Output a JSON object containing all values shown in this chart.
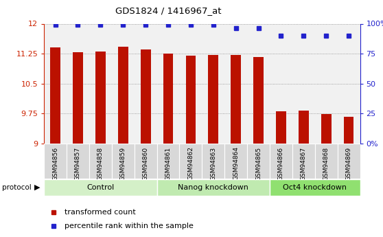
{
  "title": "GDS1824 / 1416967_at",
  "samples": [
    "GSM94856",
    "GSM94857",
    "GSM94858",
    "GSM94859",
    "GSM94860",
    "GSM94861",
    "GSM94862",
    "GSM94863",
    "GSM94864",
    "GSM94865",
    "GSM94866",
    "GSM94867",
    "GSM94868",
    "GSM94869"
  ],
  "transformed_counts": [
    11.4,
    11.28,
    11.3,
    11.42,
    11.35,
    11.25,
    11.2,
    11.22,
    11.21,
    11.17,
    9.8,
    9.82,
    9.73,
    9.67
  ],
  "percentile_ranks": [
    99,
    99,
    99,
    99,
    99,
    99,
    99,
    99,
    96,
    96,
    90,
    90,
    90,
    90
  ],
  "groups": [
    "Control",
    "Control",
    "Control",
    "Control",
    "Control",
    "Nanog knockdown",
    "Nanog knockdown",
    "Nanog knockdown",
    "Nanog knockdown",
    "Nanog knockdown",
    "Oct4 knockdown",
    "Oct4 knockdown",
    "Oct4 knockdown",
    "Oct4 knockdown"
  ],
  "group_colors": {
    "Control": "#d4f0c8",
    "Nanog knockdown": "#c0eab0",
    "Oct4 knockdown": "#90e070"
  },
  "bar_color": "#bb1100",
  "dot_color": "#2222cc",
  "ylim_left": [
    9,
    12
  ],
  "ylim_right": [
    0,
    100
  ],
  "yticks_left": [
    9,
    9.75,
    10.5,
    11.25,
    12
  ],
  "yticks_right": [
    0,
    25,
    50,
    75,
    100
  ],
  "ytick_labels_left": [
    "9",
    "9.75",
    "10.5",
    "11.25",
    "12"
  ],
  "ytick_labels_right": [
    "0%",
    "25",
    "50",
    "75",
    "100%"
  ],
  "left_axis_color": "#cc2200",
  "right_axis_color": "#2222cc",
  "legend_items": [
    "transformed count",
    "percentile rank within the sample"
  ],
  "protocol_label": "protocol",
  "cell_bg_color": "#d8d8d8",
  "white": "#ffffff"
}
